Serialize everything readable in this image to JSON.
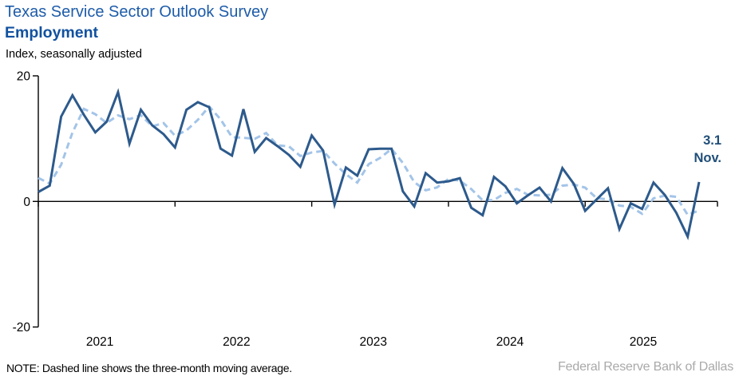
{
  "header": {
    "title": "Texas Service Sector Outlook Survey",
    "subtitle": "Employment",
    "axis_note": "Index, seasonally adjusted"
  },
  "annotation": {
    "value": "3.1",
    "label": "Nov."
  },
  "footer": {
    "note": "NOTE: Dashed line shows the three-month moving average.",
    "source": "Federal Reserve Bank of Dallas"
  },
  "colors": {
    "title": "#1e5ca9",
    "subtitle": "#11519f",
    "solid_line": "#2d5a8c",
    "dashed_line": "#a3c4e8",
    "annotation": "#1f4e79",
    "axis": "#000000",
    "source_text": "#a9a9a9"
  },
  "chart_data": {
    "type": "line",
    "title": "Texas Service Sector Outlook Survey — Employment",
    "ylabel": "Index, seasonally adjusted",
    "ylim": [
      -20,
      20
    ],
    "yticks": [
      20,
      0,
      -20
    ],
    "grid": false,
    "frequency": "monthly",
    "x_start": "2021-01",
    "x_end": "2025-11",
    "year_labels": [
      "2021",
      "2022",
      "2023",
      "2024",
      "2025"
    ],
    "series": [
      {
        "name": "Employment index, seasonally adjusted",
        "style": "solid",
        "values": [
          1.5,
          2.5,
          13.5,
          16.9,
          13.8,
          11.0,
          12.7,
          17.4,
          9.2,
          14.6,
          12.1,
          10.7,
          8.6,
          14.6,
          15.8,
          15.0,
          8.4,
          7.3,
          14.7,
          7.9,
          10.1,
          8.8,
          7.4,
          5.5,
          10.5,
          8.1,
          -0.5,
          5.4,
          4.1,
          8.3,
          8.4,
          8.4,
          1.6,
          -0.8,
          4.5,
          3.0,
          3.2,
          3.7,
          -1.0,
          -2.2,
          3.9,
          2.4,
          -0.3,
          1.0,
          2.2,
          0.0,
          5.3,
          2.8,
          -1.5,
          0.3,
          2.1,
          -4.4,
          -0.3,
          -1.2,
          3.0,
          1.0,
          -1.8,
          -5.6,
          3.1
        ]
      },
      {
        "name": "Three-month moving average",
        "style": "dashed",
        "ma_window": 3,
        "seed_prior_values": [
          5.2,
          4.5
        ]
      }
    ],
    "last_point": {
      "value": 3.1,
      "month_label": "Nov."
    }
  }
}
